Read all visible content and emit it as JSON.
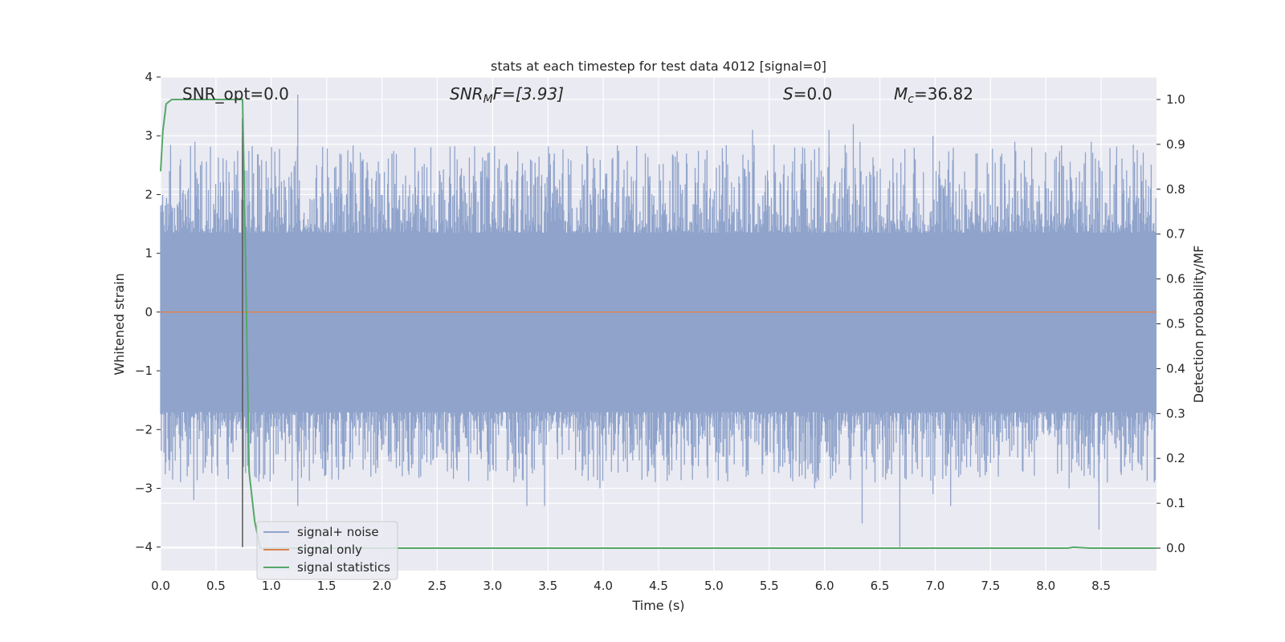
{
  "chart_data": {
    "type": "line",
    "title": "stats at each timestep for test data 4012 [signal=0]",
    "xlabel": "Time (s)",
    "ylabel": "Whitened strain",
    "y2label": "Detection probability/MF",
    "xlim": [
      0.0,
      9.0
    ],
    "ylim": [
      -4.4,
      4.0
    ],
    "y2lim": [
      -0.05,
      1.05
    ],
    "x_ticks": [
      "0.0",
      "0.5",
      "1.0",
      "1.5",
      "2.0",
      "2.5",
      "3.0",
      "3.5",
      "4.0",
      "4.5",
      "5.0",
      "5.5",
      "6.0",
      "6.5",
      "7.0",
      "7.5",
      "8.0",
      "8.5"
    ],
    "y_ticks": [
      "4",
      "3",
      "2",
      "1",
      "0",
      "−1",
      "−2",
      "−3",
      "−4"
    ],
    "y2_ticks": [
      "1.0",
      "0.9",
      "0.8",
      "0.7",
      "0.6",
      "0.5",
      "0.4",
      "0.3",
      "0.2",
      "0.1",
      "0.0"
    ],
    "grid": true,
    "legend_position": "lower-left",
    "annotations": {
      "snr_opt": "SNR_opt=0.0",
      "snr_mf_main": "SNR",
      "snr_mf_sub": "M",
      "snr_mf_rest": "F=[3.93]",
      "s_main": "S",
      "s_rest": "=0.0",
      "mc_main": "M",
      "mc_sub": "c",
      "mc_rest": "=36.82"
    },
    "marker_line_x": 0.74,
    "series": [
      {
        "name": "signal+ noise",
        "color": "#8fa3cb",
        "axis": "left",
        "description": "whitened strain noise, roughly -1.7 to 1.4 with spikes between -4.0 and 3.7",
        "spikes": [
          [
            0.08,
            2.4
          ],
          [
            0.18,
            2.6
          ],
          [
            0.31,
            2.9
          ],
          [
            0.36,
            2.5
          ],
          [
            0.52,
            2.0
          ],
          [
            0.62,
            2.2
          ],
          [
            0.74,
            3.3
          ],
          [
            1.24,
            3.7
          ],
          [
            1.16,
            2.3
          ],
          [
            1.41,
            2.5
          ],
          [
            1.83,
            2.6
          ],
          [
            2.09,
            2.7
          ],
          [
            2.33,
            2.4
          ],
          [
            2.68,
            2.6
          ],
          [
            2.83,
            2.2
          ],
          [
            3.22,
            2.4
          ],
          [
            3.51,
            2.4
          ],
          [
            3.86,
            2.7
          ],
          [
            4.08,
            2.6
          ],
          [
            4.38,
            2.7
          ],
          [
            4.92,
            2.6
          ],
          [
            5.05,
            2.5
          ],
          [
            5.35,
            3.1
          ],
          [
            5.73,
            2.8
          ],
          [
            5.95,
            2.8
          ],
          [
            6.04,
            3.1
          ],
          [
            6.26,
            3.2
          ],
          [
            6.32,
            2.9
          ],
          [
            6.82,
            2.6
          ],
          [
            6.98,
            3.0
          ],
          [
            7.38,
            2.7
          ],
          [
            7.72,
            2.9
          ],
          [
            8.08,
            2.6
          ],
          [
            8.41,
            2.9
          ],
          [
            8.63,
            2.5
          ],
          [
            8.86,
            2.5
          ],
          [
            0.08,
            -2.7
          ],
          [
            0.3,
            -3.2
          ],
          [
            0.6,
            -2.6
          ],
          [
            0.85,
            -2.8
          ],
          [
            1.24,
            -3.3
          ],
          [
            1.45,
            -2.5
          ],
          [
            1.9,
            -2.8
          ],
          [
            2.35,
            -2.8
          ],
          [
            2.68,
            -2.7
          ],
          [
            3.31,
            -3.3
          ],
          [
            3.47,
            -3.3
          ],
          [
            3.97,
            -3.0
          ],
          [
            4.4,
            -2.8
          ],
          [
            4.8,
            -2.6
          ],
          [
            5.3,
            -2.7
          ],
          [
            5.91,
            -3.0
          ],
          [
            6.34,
            -3.6
          ],
          [
            6.68,
            -4.0
          ],
          [
            6.98,
            -3.1
          ],
          [
            7.14,
            -3.3
          ],
          [
            7.57,
            -2.8
          ],
          [
            8.21,
            -3.0
          ],
          [
            8.48,
            -3.7
          ],
          [
            8.78,
            -2.7
          ],
          [
            8.98,
            -2.9
          ]
        ]
      },
      {
        "name": "signal only",
        "color": "#dd8452",
        "axis": "left",
        "x": [
          0.0,
          9.0
        ],
        "y": [
          0.0,
          0.0
        ]
      },
      {
        "name": "signal statistics",
        "color": "#55a868",
        "axis": "right",
        "x": [
          0.0,
          0.02,
          0.05,
          0.1,
          0.2,
          0.4,
          0.6,
          0.72,
          0.74,
          0.76,
          0.8,
          0.85,
          0.9,
          1.2,
          2.0,
          4.0,
          6.0,
          8.0,
          8.2,
          8.25,
          8.4,
          9.0
        ],
        "y": [
          0.84,
          0.93,
          0.99,
          1.0,
          1.0,
          1.0,
          1.0,
          1.0,
          1.0,
          0.75,
          0.17,
          0.06,
          0.0,
          0.0,
          0.0,
          0.0,
          0.0,
          0.0,
          0.0,
          0.002,
          0.0,
          0.0
        ]
      }
    ]
  }
}
